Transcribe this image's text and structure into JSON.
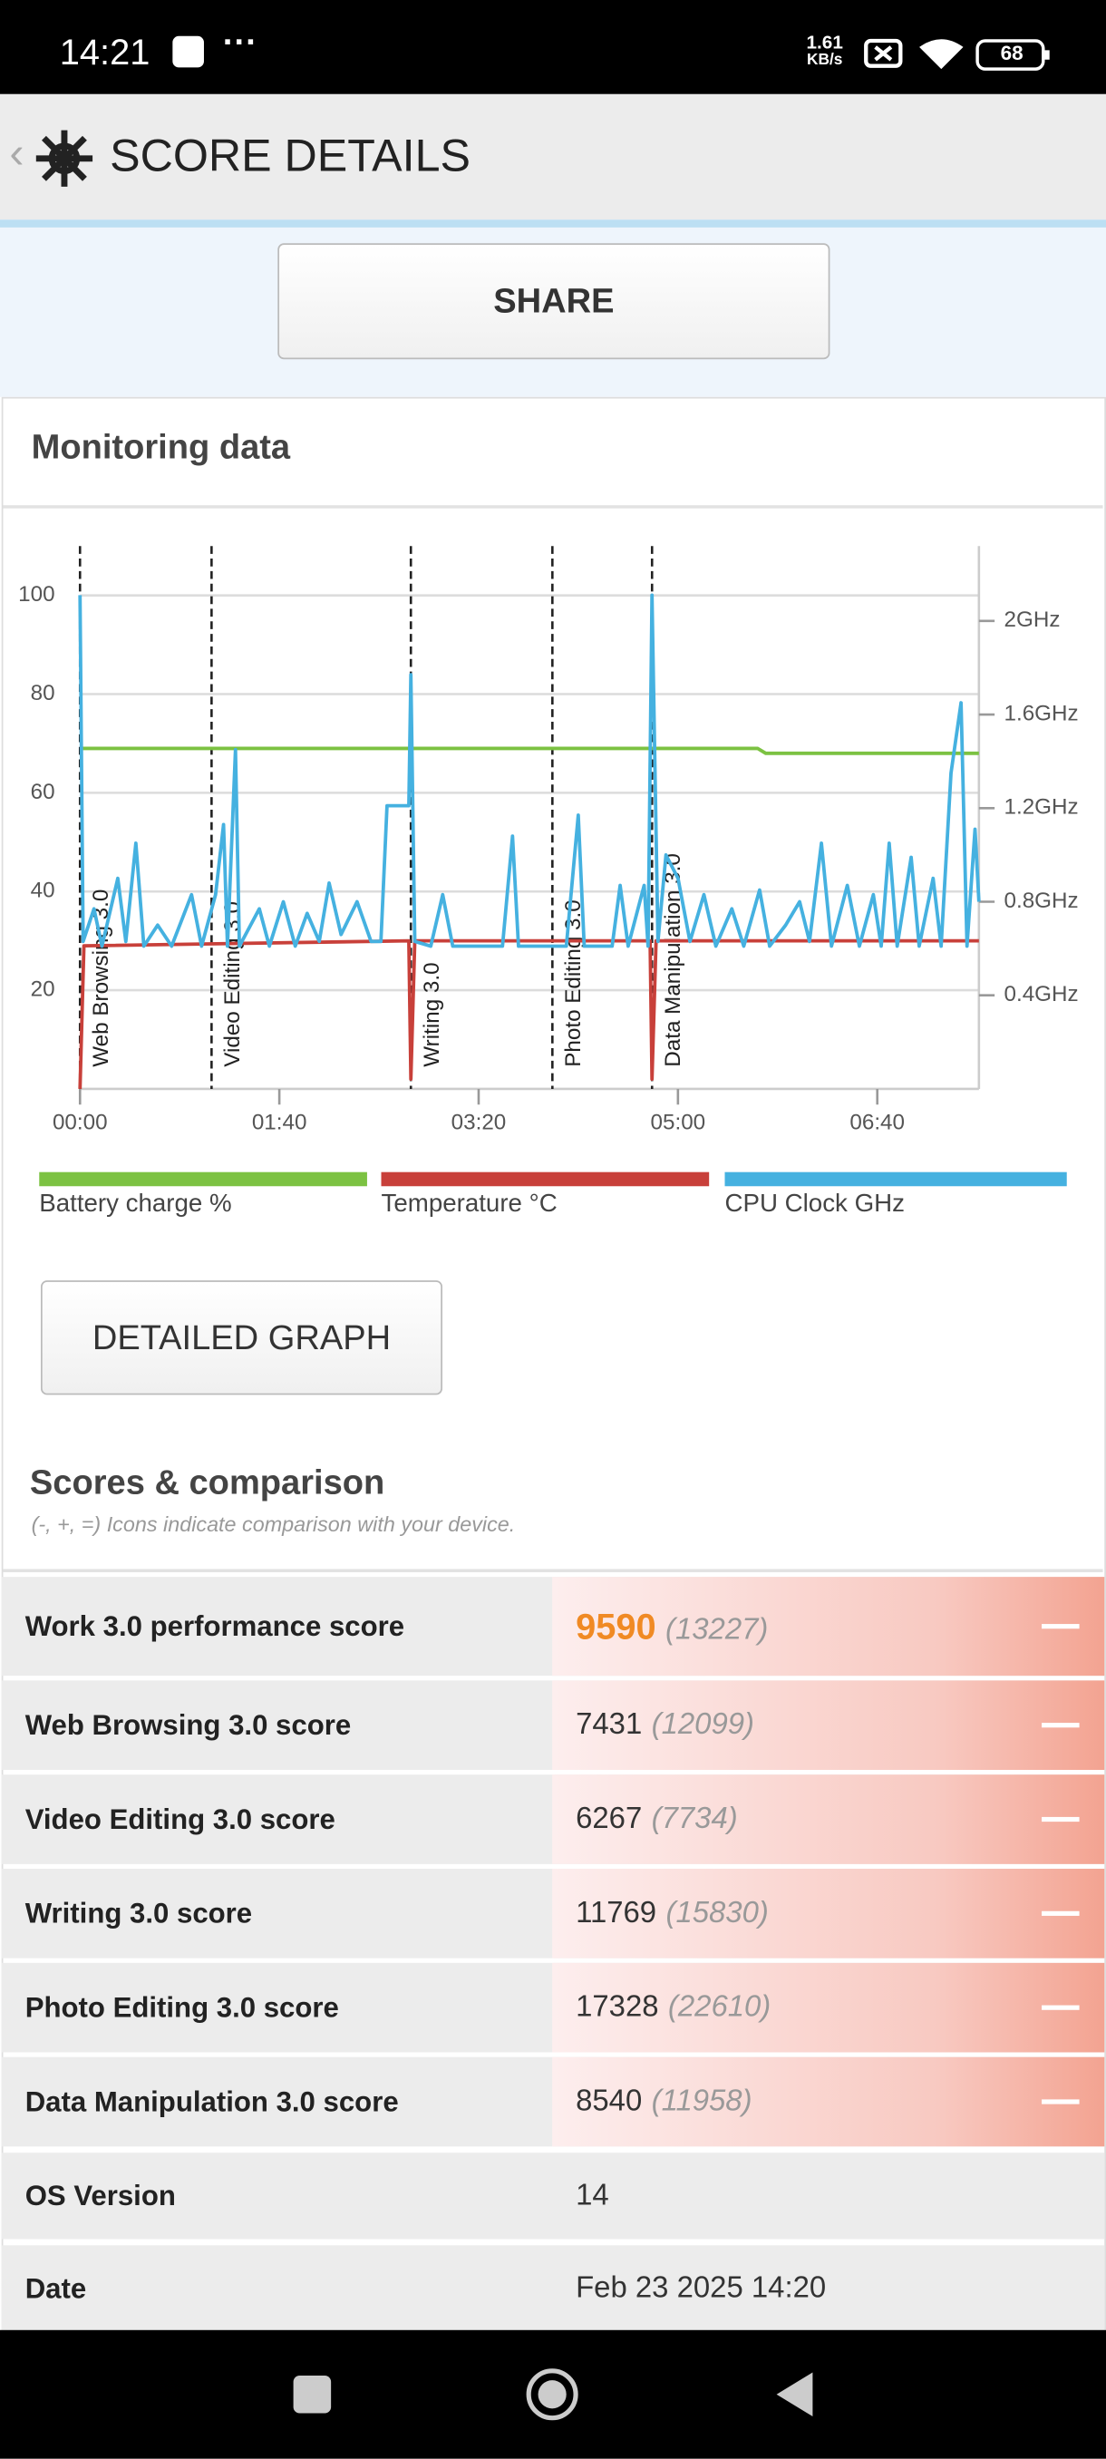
{
  "status_bar": {
    "time": "14:21",
    "net_speed": "1.61",
    "net_unit": "KB/s",
    "battery": "68"
  },
  "header": {
    "title": "SCORE DETAILS"
  },
  "share_button": "SHARE",
  "monitoring": {
    "title": "Monitoring data",
    "button": "DETAILED GRAPH"
  },
  "chart_data": {
    "type": "line",
    "xlim": [
      0,
      451
    ],
    "xticks": [
      {
        "value": 0,
        "label": "00:00"
      },
      {
        "value": 100,
        "label": "01:40"
      },
      {
        "value": 200,
        "label": "03:20"
      },
      {
        "value": 300,
        "label": "05:00"
      },
      {
        "value": 400,
        "label": "06:40"
      }
    ],
    "ylim": [
      0,
      110
    ],
    "yticks": [
      20,
      40,
      60,
      80,
      100
    ],
    "y2lim": [
      0,
      2.32
    ],
    "y2ticks": [
      {
        "value": 0.4,
        "label": "0.4GHz"
      },
      {
        "value": 0.8,
        "label": "0.8GHz"
      },
      {
        "value": 1.2,
        "label": "1.2GHz"
      },
      {
        "value": 1.6,
        "label": "1.6GHz"
      },
      {
        "value": 2,
        "label": "2GHz"
      }
    ],
    "grid": true,
    "legend": "bottom",
    "markers": [
      {
        "x": 0,
        "label": "Web Browsing 3.0"
      },
      {
        "x": 66,
        "label": "Video Editing 3.0"
      },
      {
        "x": 166,
        "label": "Writing 3.0"
      },
      {
        "x": 237,
        "label": "Photo Editing 3.0"
      },
      {
        "x": 287,
        "label": "Data Manipulation 3.0"
      }
    ],
    "series": [
      {
        "name": "Battery charge %",
        "color": "#7cc242",
        "axis": "y",
        "x": [
          0,
          340,
          344,
          451
        ],
        "values": [
          69,
          69,
          68,
          68
        ]
      },
      {
        "name": "Temperature °C",
        "color": "#c8403a",
        "axis": "y",
        "x": [
          0,
          2,
          165,
          166,
          168,
          286,
          287,
          289,
          451
        ],
        "values": [
          0,
          29,
          30,
          2,
          30,
          30,
          2,
          30,
          30
        ]
      },
      {
        "name": "CPU Clock GHz",
        "color": "#45b1e0",
        "axis": "y2",
        "x": [
          0,
          1.6,
          7,
          11,
          19,
          23,
          28,
          32,
          39,
          46,
          56,
          61,
          68,
          72,
          74,
          78,
          80,
          90,
          95,
          102,
          108,
          114,
          120,
          125,
          131,
          139,
          146,
          151,
          154,
          165,
          166,
          168,
          176,
          182,
          187,
          212,
          217,
          220,
          244,
          250,
          253,
          267,
          271,
          275,
          283,
          285,
          287,
          290,
          294,
          300,
          306,
          313,
          319,
          327,
          333,
          341,
          346,
          354,
          361,
          366,
          372,
          377,
          385,
          391,
          398,
          402,
          406,
          410,
          417,
          421,
          428,
          432,
          437,
          442,
          445,
          449,
          451
        ],
        "values": [
          2.11,
          0.63,
          0.77,
          0.61,
          0.9,
          0.63,
          1.05,
          0.61,
          0.7,
          0.61,
          0.83,
          0.61,
          0.83,
          1.13,
          0.61,
          1.45,
          0.61,
          0.77,
          0.61,
          0.8,
          0.61,
          0.75,
          0.63,
          0.88,
          0.66,
          0.8,
          0.63,
          0.63,
          1.21,
          1.21,
          1.77,
          0.63,
          0.61,
          0.83,
          0.61,
          0.61,
          1.08,
          0.61,
          0.61,
          1.17,
          0.61,
          0.61,
          0.87,
          0.61,
          0.87,
          0.61,
          2.11,
          0.63,
          1.0,
          0.9,
          0.63,
          0.83,
          0.61,
          0.77,
          0.61,
          0.85,
          0.61,
          0.7,
          0.8,
          0.63,
          1.05,
          0.61,
          0.87,
          0.61,
          0.83,
          0.61,
          1.05,
          0.61,
          0.99,
          0.61,
          0.9,
          0.61,
          1.35,
          1.65,
          0.61,
          1.11,
          0.8
        ]
      }
    ]
  },
  "scores": {
    "title": "Scores & comparison",
    "note": "(-, +, =) Icons indicate comparison with your device.",
    "rows": [
      {
        "label": "Work 3.0 performance score",
        "score": "9590",
        "comparison": "(13227)"
      },
      {
        "label": "Web Browsing 3.0 score",
        "score": "7431",
        "comparison": "(12099)"
      },
      {
        "label": "Video Editing 3.0 score",
        "score": "6267",
        "comparison": "(7734)"
      },
      {
        "label": "Writing 3.0 score",
        "score": "11769",
        "comparison": "(15830)"
      },
      {
        "label": "Photo Editing 3.0 score",
        "score": "17328",
        "comparison": "(22610)"
      },
      {
        "label": "Data Manipulation 3.0 score",
        "score": "8540",
        "comparison": "(11958)"
      }
    ]
  },
  "info": [
    {
      "label": "OS Version",
      "value": "14"
    },
    {
      "label": "Date",
      "value": "Feb 23 2025 14:20"
    }
  ]
}
